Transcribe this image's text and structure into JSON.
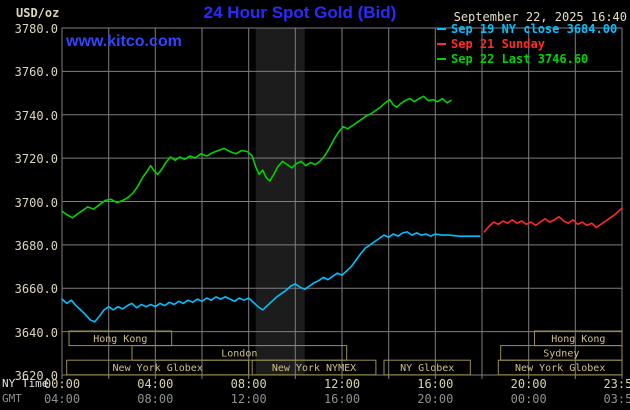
{
  "header": {
    "units_label": "USD/oz",
    "title": "24 Hour Spot Gold (Bid)",
    "datetime": "September 22, 2025 16:40",
    "watermark": "www.kitco.com"
  },
  "legend": [
    {
      "label": "Sep 19 NY close 3684.00",
      "color": "#00c0ff"
    },
    {
      "label": "Sep 21 Sunday",
      "color": "#ff2a2a"
    },
    {
      "label": "Sep 22 Last 3746.60",
      "color": "#00d400"
    }
  ],
  "axes": {
    "ny_time_label": "NY Time",
    "gmt_label": "GMT",
    "y_ticks": [
      "3780.0",
      "3760.0",
      "3740.0",
      "3720.0",
      "3700.0",
      "3680.0",
      "3660.0",
      "3640.0",
      "3620.0"
    ],
    "ny_ticks": [
      {
        "label": "00:00",
        "hour": 0
      },
      {
        "label": "04:00",
        "hour": 4
      },
      {
        "label": "08:00",
        "hour": 8
      },
      {
        "label": "12:00",
        "hour": 12
      },
      {
        "label": "16:00",
        "hour": 16
      },
      {
        "label": "20:00",
        "hour": 20
      },
      {
        "label": "23:59",
        "hour": 23.98
      }
    ],
    "gmt_ticks": [
      {
        "label": "04:00",
        "hour": 0
      },
      {
        "label": "08:00",
        "hour": 4
      },
      {
        "label": "12:00",
        "hour": 8
      },
      {
        "label": "16:00",
        "hour": 12
      },
      {
        "label": "20:00",
        "hour": 16
      },
      {
        "label": "00:00",
        "hour": 20
      },
      {
        "label": "03:59",
        "hour": 23.98
      }
    ]
  },
  "sessions": [
    {
      "label": "Hong Kong",
      "row": 0,
      "start": 0.3,
      "end": 4.7
    },
    {
      "label": "Hong Kong",
      "row": 0,
      "start": 20.25,
      "end": 24.0
    },
    {
      "label": "London",
      "row": 1,
      "start": 3.0,
      "end": 12.2
    },
    {
      "label": "Sydney",
      "row": 1,
      "start": 18.8,
      "end": 24.0
    },
    {
      "label": "New York Globex",
      "row": 2,
      "start": 0.2,
      "end": 8.0
    },
    {
      "label": "New York NYMEX",
      "row": 2,
      "start": 8.15,
      "end": 13.45
    },
    {
      "label": "NY Globex",
      "row": 2,
      "start": 13.8,
      "end": 17.5
    },
    {
      "label": "New York Globex",
      "row": 2,
      "start": 18.7,
      "end": 24.0
    }
  ],
  "chart_data": {
    "type": "line",
    "title": "24 Hour Spot Gold (Bid)",
    "xlabel": "NY Time (hours)",
    "ylabel": "USD/oz",
    "ylim": [
      3620,
      3780
    ],
    "y_step": 20,
    "xlim_hours": [
      0,
      24
    ],
    "x_grid_step_hours": 2,
    "grid": true,
    "grid_color": "#7e7e7e",
    "highlight_band_hours": [
      8.3,
      10.4
    ],
    "legend_position": "top-right",
    "series": [
      {
        "name": "Sep 19 NY close",
        "color": "#00c0ff",
        "close": 3684.0,
        "points": [
          [
            0.0,
            3655
          ],
          [
            0.2,
            3653
          ],
          [
            0.4,
            3654.5
          ],
          [
            0.6,
            3652
          ],
          [
            0.8,
            3650
          ],
          [
            1.0,
            3648
          ],
          [
            1.2,
            3645.5
          ],
          [
            1.4,
            3644.5
          ],
          [
            1.6,
            3647
          ],
          [
            1.8,
            3650
          ],
          [
            2.0,
            3651.5
          ],
          [
            2.2,
            3650
          ],
          [
            2.4,
            3651.5
          ],
          [
            2.6,
            3650.5
          ],
          [
            2.8,
            3652
          ],
          [
            3.0,
            3653
          ],
          [
            3.2,
            3651
          ],
          [
            3.4,
            3652.5
          ],
          [
            3.6,
            3651.5
          ],
          [
            3.8,
            3652.5
          ],
          [
            4.0,
            3651.5
          ],
          [
            4.2,
            3653
          ],
          [
            4.4,
            3652
          ],
          [
            4.6,
            3653.5
          ],
          [
            4.8,
            3652.5
          ],
          [
            5.0,
            3654
          ],
          [
            5.2,
            3653
          ],
          [
            5.4,
            3654.5
          ],
          [
            5.6,
            3653.5
          ],
          [
            5.8,
            3655
          ],
          [
            6.0,
            3654
          ],
          [
            6.2,
            3655.5
          ],
          [
            6.4,
            3654.5
          ],
          [
            6.6,
            3656
          ],
          [
            6.8,
            3655
          ],
          [
            7.0,
            3656
          ],
          [
            7.2,
            3655
          ],
          [
            7.4,
            3654
          ],
          [
            7.6,
            3655.5
          ],
          [
            7.8,
            3654.5
          ],
          [
            8.0,
            3655.5
          ],
          [
            8.2,
            3653.5
          ],
          [
            8.4,
            3651.5
          ],
          [
            8.6,
            3650
          ],
          [
            8.8,
            3652
          ],
          [
            9.0,
            3654
          ],
          [
            9.2,
            3656
          ],
          [
            9.4,
            3657.5
          ],
          [
            9.6,
            3659
          ],
          [
            9.8,
            3661
          ],
          [
            10.0,
            3662
          ],
          [
            10.2,
            3660.5
          ],
          [
            10.4,
            3659.5
          ],
          [
            10.6,
            3661
          ],
          [
            10.8,
            3662.5
          ],
          [
            11.0,
            3663.5
          ],
          [
            11.2,
            3665
          ],
          [
            11.4,
            3664
          ],
          [
            11.6,
            3665.5
          ],
          [
            11.8,
            3667
          ],
          [
            12.0,
            3666
          ],
          [
            12.2,
            3668
          ],
          [
            12.4,
            3670
          ],
          [
            12.6,
            3673
          ],
          [
            12.8,
            3676
          ],
          [
            13.0,
            3678.5
          ],
          [
            13.2,
            3680
          ],
          [
            13.4,
            3681.5
          ],
          [
            13.6,
            3683
          ],
          [
            13.8,
            3684.5
          ],
          [
            14.0,
            3683.5
          ],
          [
            14.2,
            3685
          ],
          [
            14.4,
            3684
          ],
          [
            14.6,
            3685.5
          ],
          [
            14.8,
            3686
          ],
          [
            15.0,
            3684.5
          ],
          [
            15.2,
            3685.5
          ],
          [
            15.4,
            3684.5
          ],
          [
            15.6,
            3685
          ],
          [
            15.8,
            3684
          ],
          [
            16.0,
            3685
          ],
          [
            16.3,
            3684.5
          ],
          [
            16.6,
            3684.5
          ],
          [
            17.0,
            3684
          ],
          [
            17.9,
            3684
          ]
        ]
      },
      {
        "name": "Sep 21 Sunday",
        "color": "#ff2a2a",
        "points": [
          [
            18.1,
            3686
          ],
          [
            18.3,
            3688.5
          ],
          [
            18.5,
            3690.5
          ],
          [
            18.7,
            3689.5
          ],
          [
            18.9,
            3691
          ],
          [
            19.1,
            3690
          ],
          [
            19.3,
            3691.5
          ],
          [
            19.5,
            3690
          ],
          [
            19.7,
            3691
          ],
          [
            19.9,
            3689.5
          ],
          [
            20.1,
            3690.5
          ],
          [
            20.3,
            3689
          ],
          [
            20.5,
            3690.5
          ],
          [
            20.7,
            3692
          ],
          [
            20.9,
            3690.5
          ],
          [
            21.1,
            3691.5
          ],
          [
            21.3,
            3693
          ],
          [
            21.5,
            3691
          ],
          [
            21.7,
            3690
          ],
          [
            21.9,
            3691.5
          ],
          [
            22.1,
            3689.5
          ],
          [
            22.3,
            3690.5
          ],
          [
            22.5,
            3689
          ],
          [
            22.7,
            3690
          ],
          [
            22.9,
            3688
          ],
          [
            23.1,
            3689.5
          ],
          [
            23.3,
            3691
          ],
          [
            23.5,
            3692.5
          ],
          [
            23.7,
            3694
          ],
          [
            23.85,
            3695.5
          ],
          [
            24.0,
            3697
          ]
        ]
      },
      {
        "name": "Sep 22 Last",
        "color": "#00d400",
        "last": 3746.6,
        "points": [
          [
            0.0,
            3695.5
          ],
          [
            0.2,
            3694
          ],
          [
            0.45,
            3692.5
          ],
          [
            0.7,
            3694.5
          ],
          [
            0.9,
            3696
          ],
          [
            1.1,
            3697.5
          ],
          [
            1.35,
            3696.5
          ],
          [
            1.6,
            3698.5
          ],
          [
            1.85,
            3700.5
          ],
          [
            2.1,
            3701
          ],
          [
            2.35,
            3699.5
          ],
          [
            2.6,
            3700.5
          ],
          [
            2.85,
            3702
          ],
          [
            3.05,
            3704
          ],
          [
            3.25,
            3707
          ],
          [
            3.45,
            3711
          ],
          [
            3.65,
            3714
          ],
          [
            3.8,
            3716.5
          ],
          [
            3.95,
            3714
          ],
          [
            4.1,
            3712.5
          ],
          [
            4.25,
            3714.5
          ],
          [
            4.45,
            3718
          ],
          [
            4.65,
            3720.5
          ],
          [
            4.85,
            3719
          ],
          [
            5.05,
            3720.5
          ],
          [
            5.25,
            3719.5
          ],
          [
            5.5,
            3721
          ],
          [
            5.7,
            3720
          ],
          [
            5.95,
            3722
          ],
          [
            6.2,
            3721
          ],
          [
            6.45,
            3722.5
          ],
          [
            6.7,
            3723.5
          ],
          [
            6.95,
            3724.5
          ],
          [
            7.2,
            3723
          ],
          [
            7.45,
            3722
          ],
          [
            7.7,
            3723.5
          ],
          [
            7.95,
            3723
          ],
          [
            8.15,
            3721
          ],
          [
            8.3,
            3716
          ],
          [
            8.45,
            3712.5
          ],
          [
            8.6,
            3714.5
          ],
          [
            8.75,
            3711
          ],
          [
            8.9,
            3709.5
          ],
          [
            9.05,
            3712
          ],
          [
            9.25,
            3716
          ],
          [
            9.45,
            3718.5
          ],
          [
            9.65,
            3717
          ],
          [
            9.85,
            3715.5
          ],
          [
            10.05,
            3717.5
          ],
          [
            10.25,
            3718.5
          ],
          [
            10.45,
            3716.5
          ],
          [
            10.65,
            3718
          ],
          [
            10.85,
            3717
          ],
          [
            11.05,
            3718.5
          ],
          [
            11.25,
            3721
          ],
          [
            11.45,
            3724.5
          ],
          [
            11.65,
            3728.5
          ],
          [
            11.85,
            3732
          ],
          [
            12.05,
            3734.5
          ],
          [
            12.25,
            3733.5
          ],
          [
            12.45,
            3735
          ],
          [
            12.65,
            3736.5
          ],
          [
            12.85,
            3738
          ],
          [
            13.05,
            3739.5
          ],
          [
            13.25,
            3740.5
          ],
          [
            13.45,
            3742
          ],
          [
            13.65,
            3743.5
          ],
          [
            13.85,
            3745.5
          ],
          [
            14.05,
            3747
          ],
          [
            14.2,
            3744.5
          ],
          [
            14.35,
            3743.5
          ],
          [
            14.5,
            3745
          ],
          [
            14.7,
            3746.5
          ],
          [
            14.9,
            3747.5
          ],
          [
            15.1,
            3746
          ],
          [
            15.3,
            3747.5
          ],
          [
            15.5,
            3748.5
          ],
          [
            15.7,
            3746.5
          ],
          [
            15.9,
            3747
          ],
          [
            16.1,
            3746
          ],
          [
            16.3,
            3747.5
          ],
          [
            16.5,
            3745.5
          ],
          [
            16.67,
            3746.6
          ]
        ]
      }
    ]
  }
}
